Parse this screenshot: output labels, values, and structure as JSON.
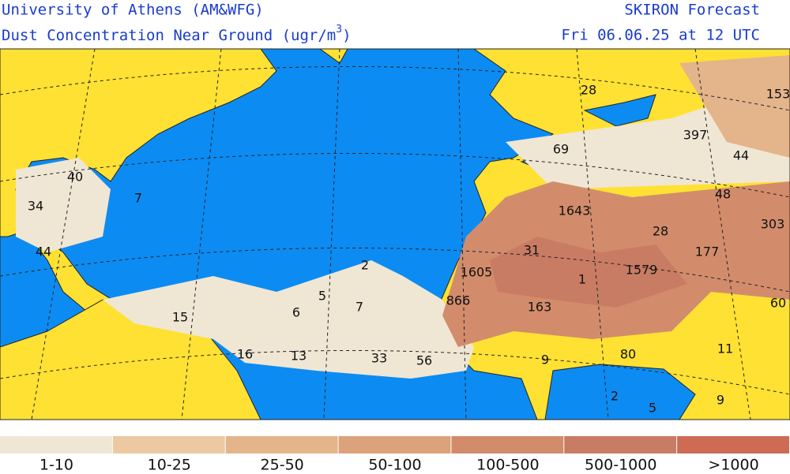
{
  "header": {
    "left_title": "University of Athens (AM&WFG)",
    "left_subtitle": "Dust Concentration Near Ground (ugr/m",
    "superscript": "3",
    "closing": ")",
    "right_title": "SKIRON Forecast",
    "right_subtitle": "Fri 06.06.25 at 12 UTC"
  },
  "map_labels": [
    40,
    34,
    44,
    7,
    15,
    16,
    13,
    6,
    5,
    7,
    2,
    33,
    56,
    866,
    1605,
    31,
    163,
    1,
    1579,
    1643,
    28,
    177,
    48,
    44,
    397,
    69,
    28,
    153,
    303,
    60,
    11,
    80,
    9,
    2,
    5,
    9
  ],
  "legend": {
    "labels": [
      "1-10",
      "10-25",
      "25-50",
      "50-100",
      "100-500",
      "500-1000",
      ">1000"
    ],
    "colors": [
      "#f0e6d4",
      "#ecc9a0",
      "#e4b48a",
      "#dca27c",
      "#d28c6c",
      "#c97c64",
      "#cd6b55"
    ]
  }
}
